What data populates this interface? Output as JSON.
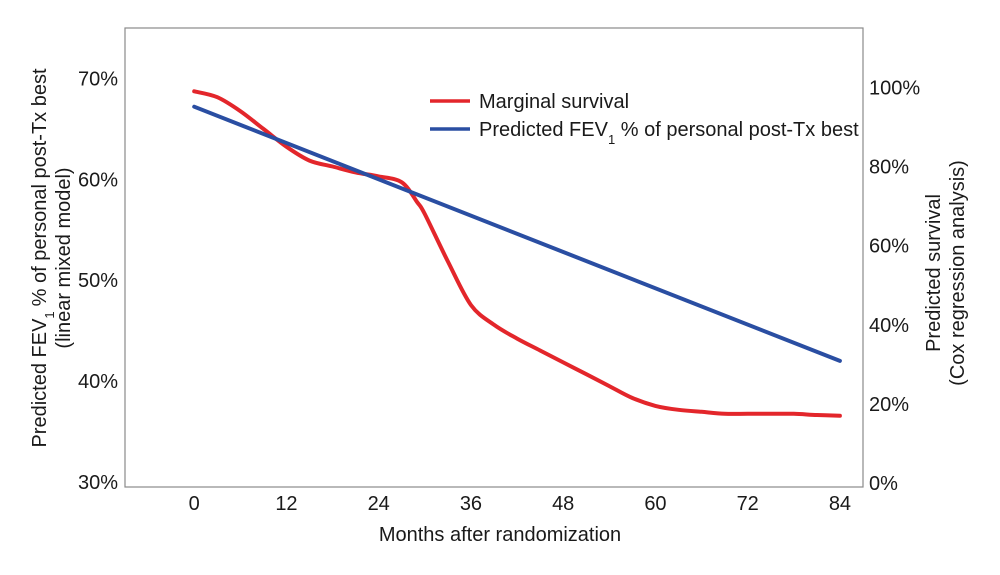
{
  "chart_data": {
    "type": "line",
    "x": [
      0,
      3,
      6,
      9,
      12,
      15,
      18,
      21,
      24,
      27,
      29,
      30,
      33,
      36,
      39,
      42,
      45,
      48,
      51,
      54,
      57,
      60,
      63,
      66,
      69,
      72,
      75,
      78,
      81,
      84
    ],
    "series": [
      {
        "name": "Marginal survival",
        "axis": "right",
        "color": "#e3262b",
        "values": [
          99,
          97.5,
          94,
          89.5,
          85,
          81.5,
          80,
          78.5,
          77.5,
          76,
          71,
          68,
          56,
          45,
          40,
          36.5,
          33.5,
          30.5,
          27.5,
          24.5,
          21.5,
          19.5,
          18.5,
          18,
          17.5,
          17.5,
          17.5,
          17.5,
          17.2,
          17
        ]
      },
      {
        "name": "Predicted FEV",
        "name_sub": "1",
        "name_rest": " % of personal post-Tx best",
        "axis": "left",
        "color": "#2a4ea2",
        "x": [
          0,
          84
        ],
        "values": [
          67.2,
          42
        ]
      }
    ],
    "xlabel": "Months after randomization",
    "xlim": [
      -9,
      87
    ],
    "xticks": [
      "0",
      "12",
      "24",
      "36",
      "48",
      "60",
      "72",
      "84"
    ],
    "xtick_values": [
      0,
      12,
      24,
      36,
      48,
      60,
      72,
      84
    ],
    "ylabel_left": {
      "line1_pre": "Predicted FEV",
      "line1_sub": "1",
      "line1_post": "% of personal post-Tx best",
      "line2": "(linear mixed model)"
    },
    "ylim_left": [
      29.5,
      75
    ],
    "yticks_left": [
      "30%",
      "40%",
      "50%",
      "60%",
      "70%"
    ],
    "ytick_values_left": [
      30,
      40,
      50,
      60,
      70
    ],
    "ylabel_right": {
      "line1": "Predicted survival",
      "line2": "(Cox regression analysis)"
    },
    "ylim_right": [
      -1,
      115
    ],
    "yticks_right": [
      "0%",
      "20%",
      "40%",
      "60%",
      "80%",
      "100%"
    ],
    "ytick_values_right": [
      0,
      20,
      40,
      60,
      80,
      100
    ],
    "legend": {
      "placement": "top-center",
      "entries": [
        "Marginal survival",
        "Predicted FEV1 % of personal post-Tx best"
      ]
    },
    "grid": false
  }
}
